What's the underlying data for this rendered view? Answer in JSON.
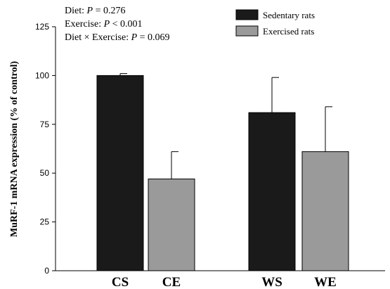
{
  "chart_data": {
    "type": "bar",
    "categories": [
      "CS",
      "CE",
      "WS",
      "WE"
    ],
    "values": [
      100,
      47,
      81,
      61
    ],
    "errors": [
      1,
      14,
      18,
      23
    ],
    "series_index": [
      0,
      1,
      0,
      1
    ],
    "series": [
      {
        "name": "Sedentary rats",
        "color": "#1a1a1a"
      },
      {
        "name": "Exercised rats",
        "color": "#9a9a9a"
      }
    ],
    "title": "",
    "xlabel": "",
    "ylabel": "MuRF-1 mRNA expression  (% of control)",
    "ylim": [
      0,
      125
    ],
    "yticks": [
      0,
      25,
      50,
      75,
      100,
      125
    ],
    "grid": false,
    "legend_position": "top-right",
    "annotations": [
      {
        "prefix": "Diet: ",
        "stat": "P",
        "rest": " = 0.276"
      },
      {
        "prefix": "Exercise: ",
        "stat": "P",
        "rest": " < 0.001"
      },
      {
        "prefix": "Diet × Exercise: ",
        "stat": "P",
        "rest": " = 0.069"
      }
    ]
  }
}
